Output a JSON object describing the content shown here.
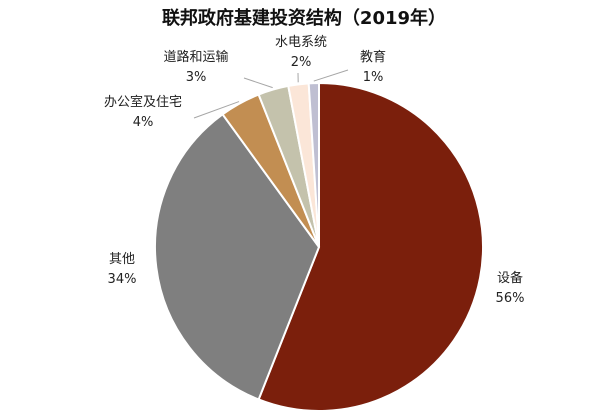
{
  "chart_data": {
    "type": "pie",
    "title": "联邦政府基建投资结构（2019年）",
    "slices": [
      {
        "label": "设备",
        "value": 56,
        "pct_label": "56%",
        "color": "#7b1f0c"
      },
      {
        "label": "其他",
        "value": 34,
        "pct_label": "34%",
        "color": "#7f7f7f"
      },
      {
        "label": "办公室及住宅",
        "value": 4,
        "pct_label": "4%",
        "color": "#c28e52"
      },
      {
        "label": "道路和运输",
        "value": 3,
        "pct_label": "3%",
        "color": "#c4c2ac"
      },
      {
        "label": "水电系统",
        "value": 2,
        "pct_label": "2%",
        "color": "#fbe6d8"
      },
      {
        "label": "教育",
        "value": 1,
        "pct_label": "1%",
        "color": "#bfbfd2"
      }
    ],
    "legend": "none"
  }
}
